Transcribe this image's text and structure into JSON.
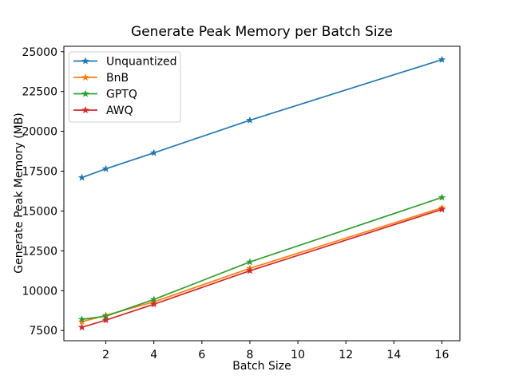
{
  "figure": {
    "background": "#ffffff",
    "spine_color": "#000000",
    "legend_border_color": "#cccccc",
    "legend_background": "#ffffff"
  },
  "chart_data": {
    "type": "line",
    "title": "Generate Peak Memory per Batch Size",
    "xlabel": "Batch Size",
    "ylabel": "Generate Peak Memory (MB)",
    "x": [
      1,
      2,
      4,
      8,
      16
    ],
    "series": [
      {
        "name": "Unquantized",
        "color": "#1f77b4",
        "values": [
          17100,
          17650,
          18650,
          20700,
          24500
        ]
      },
      {
        "name": "BnB",
        "color": "#ff7f0e",
        "values": [
          8050,
          8450,
          9300,
          11400,
          15200
        ]
      },
      {
        "name": "GPTQ",
        "color": "#2ca02c",
        "values": [
          8200,
          8400,
          9450,
          11800,
          15850
        ]
      },
      {
        "name": "AWQ",
        "color": "#d62728",
        "values": [
          7700,
          8150,
          9150,
          11250,
          15100
        ]
      }
    ],
    "marker": "star",
    "xticks": [
      2,
      4,
      6,
      8,
      10,
      12,
      14,
      16
    ],
    "yticks": [
      7500,
      10000,
      12500,
      15000,
      17500,
      20000,
      22500,
      25000
    ],
    "xlim": [
      0.25,
      16.75
    ],
    "ylim": [
      6860,
      25340
    ],
    "grid": false,
    "legend_position": "upper left"
  }
}
